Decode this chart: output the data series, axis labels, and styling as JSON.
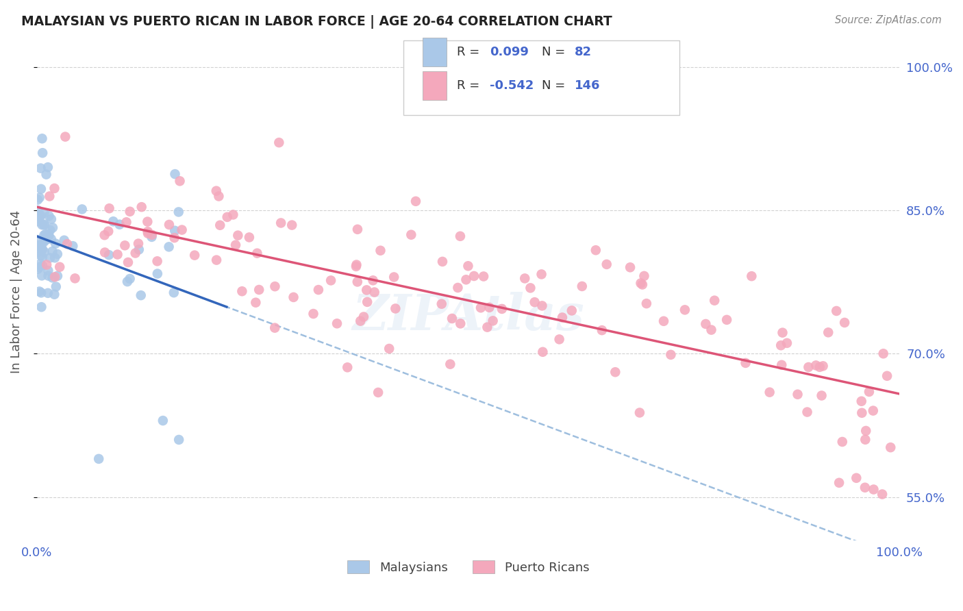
{
  "title": "MALAYSIAN VS PUERTO RICAN IN LABOR FORCE | AGE 20-64 CORRELATION CHART",
  "source": "Source: ZipAtlas.com",
  "ylabel": "In Labor Force | Age 20-64",
  "xlim": [
    0.0,
    1.0
  ],
  "ylim": [
    0.505,
    1.025
  ],
  "ytick_vals": [
    0.55,
    0.7,
    0.85,
    1.0
  ],
  "ytick_labels": [
    "55.0%",
    "70.0%",
    "85.0%",
    "100.0%"
  ],
  "legend_R_blue": "0.099",
  "legend_N_blue": "82",
  "legend_R_pink": "-0.542",
  "legend_N_pink": "146",
  "blue_color": "#aac8e8",
  "pink_color": "#f4a8bc",
  "trend_blue_solid": "#3366bb",
  "trend_pink_solid": "#dd5577",
  "trend_blue_dashed": "#99bbdd",
  "background_color": "#ffffff",
  "watermark": "ZIPAtlas",
  "tick_color": "#4466cc",
  "grid_color": "#cccccc",
  "title_color": "#222222",
  "ylabel_color": "#555555",
  "source_color": "#888888"
}
